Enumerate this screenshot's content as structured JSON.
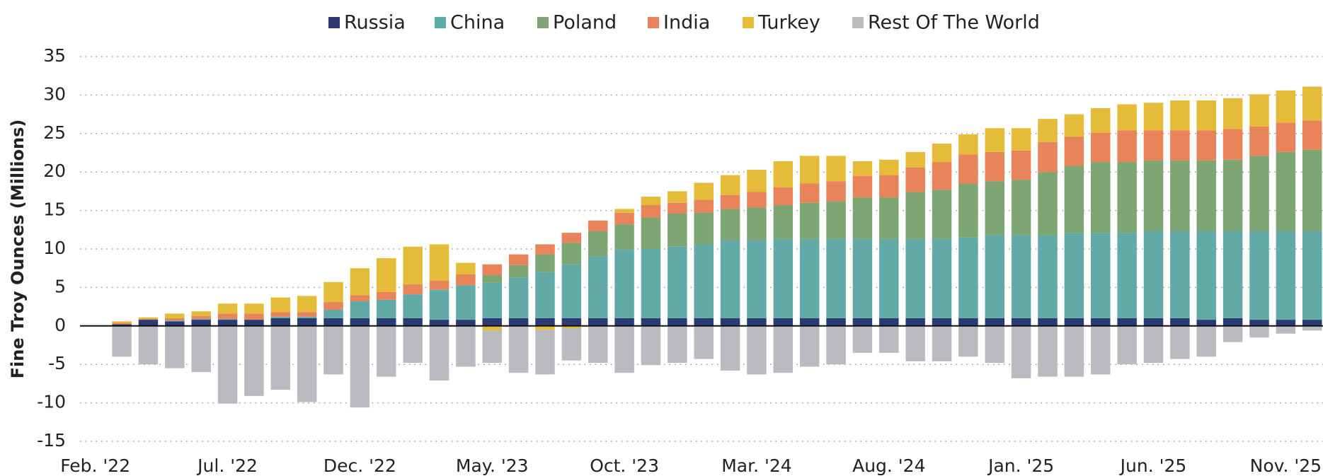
{
  "chart_data": {
    "type": "bar",
    "stacked": true,
    "y_label": "Fine Troy Ounces (Millions)",
    "categories": [
      "Feb. '22",
      null,
      null,
      null,
      null,
      "Jul. '22",
      null,
      null,
      null,
      null,
      "Dec. '22",
      null,
      null,
      null,
      null,
      "May. '23",
      null,
      null,
      null,
      null,
      "Oct. '23",
      null,
      null,
      null,
      null,
      "Mar. '24",
      null,
      null,
      null,
      null,
      "Aug. '24",
      null,
      null,
      null,
      null,
      "Jan. '25",
      null,
      null,
      null,
      null,
      "Jun. '25",
      null,
      null,
      null,
      null,
      "Nov. '25",
      null
    ],
    "series": [
      {
        "name": "Russia",
        "color": "#2b3a73",
        "values": [
          null,
          0.2,
          0.8,
          0.6,
          0.8,
          0.8,
          0.8,
          1.0,
          1.0,
          1.0,
          1.0,
          1.0,
          1.0,
          0.8,
          0.8,
          1.0,
          1.0,
          1.0,
          1.0,
          1.0,
          1.0,
          1.0,
          1.0,
          1.0,
          1.0,
          1.0,
          1.0,
          1.0,
          1.0,
          1.0,
          1.0,
          1.0,
          1.0,
          1.0,
          1.0,
          1.0,
          1.0,
          1.0,
          1.0,
          1.0,
          1.0,
          1.0,
          0.8,
          1.0,
          0.8,
          0.8,
          0.8
        ]
      },
      {
        "name": "China",
        "color": "#62aaa8",
        "values": [
          null,
          0,
          0,
          0.1,
          0.1,
          0.1,
          0,
          0.2,
          0.2,
          1.1,
          2.2,
          2.4,
          3.1,
          3.9,
          4.5,
          4.6,
          5.3,
          6.0,
          7.0,
          8.0,
          8.9,
          9.0,
          9.3,
          9.6,
          10.1,
          10.1,
          10.3,
          10.3,
          10.3,
          10.3,
          10.3,
          10.3,
          10.3,
          10.5,
          10.8,
          10.8,
          10.8,
          11.1,
          11.1,
          11.1,
          11.3,
          11.3,
          11.5,
          11.3,
          11.5,
          11.5,
          11.5
        ]
      },
      {
        "name": "Poland",
        "color": "#7ea574",
        "values": [
          null,
          0,
          0,
          0,
          0,
          0,
          0,
          0,
          0,
          0,
          0,
          0,
          0,
          0,
          0,
          1.0,
          1.6,
          2.3,
          2.8,
          3.3,
          3.3,
          4.1,
          4.3,
          4.1,
          4.1,
          4.3,
          4.4,
          4.7,
          4.9,
          5.4,
          5.4,
          6.1,
          6.4,
          7.0,
          7.0,
          7.2,
          8.2,
          8.7,
          9.2,
          9.2,
          9.2,
          9.2,
          9.2,
          9.3,
          9.8,
          10.3,
          10.6
        ]
      },
      {
        "name": "India",
        "color": "#e8835a",
        "values": [
          null,
          0.2,
          0.1,
          0.3,
          0.4,
          0.7,
          0.8,
          0.6,
          0.6,
          1.0,
          0.8,
          1.0,
          1.3,
          1.2,
          1.4,
          1.4,
          1.4,
          1.3,
          1.3,
          1.4,
          1.5,
          1.6,
          1.4,
          1.7,
          1.8,
          2.0,
          2.3,
          2.5,
          2.6,
          2.8,
          2.9,
          3.2,
          3.6,
          3.8,
          3.8,
          3.8,
          3.9,
          3.8,
          3.8,
          4.1,
          3.9,
          3.9,
          3.9,
          4.0,
          3.8,
          3.8,
          3.8
        ]
      },
      {
        "name": "Turkey",
        "color": "#e4bc3a",
        "values": [
          null,
          0.2,
          0.2,
          0.6,
          0.6,
          1.3,
          1.3,
          1.9,
          2.1,
          2.6,
          3.5,
          4.4,
          4.9,
          4.7,
          1.5,
          -0.6,
          0,
          -0.5,
          -0.3,
          0,
          0.5,
          1.1,
          1.5,
          2.2,
          2.6,
          2.9,
          3.4,
          3.6,
          3.3,
          1.9,
          2.0,
          2.0,
          2.4,
          2.6,
          3.1,
          2.9,
          3.0,
          2.9,
          3.2,
          3.4,
          3.6,
          3.9,
          3.9,
          4.0,
          4.2,
          4.2,
          4.4
        ]
      },
      {
        "name": "Rest Of The World",
        "color": "#b9bbc0",
        "values": [
          null,
          -4.0,
          -5.0,
          -5.5,
          -6.0,
          -10.1,
          -9.1,
          -8.3,
          -9.9,
          -6.3,
          -10.6,
          -6.6,
          -4.8,
          -7.1,
          -5.3,
          -4.2,
          -6.1,
          -5.8,
          -4.2,
          -4.8,
          -6.1,
          -5.1,
          -4.8,
          -4.3,
          -5.8,
          -6.3,
          -6.1,
          -5.3,
          -5.0,
          -3.5,
          -3.5,
          -4.6,
          -4.6,
          -4.0,
          -4.8,
          -6.8,
          -6.6,
          -6.6,
          -6.3,
          -5.0,
          -4.8,
          -4.3,
          -4.0,
          -2.1,
          -1.5,
          -1.0,
          -0.6
        ]
      }
    ],
    "ylim": [
      -15,
      35
    ],
    "yticks": [
      -15,
      -10,
      -5,
      0,
      5,
      10,
      15,
      20,
      25,
      30,
      35
    ],
    "grid": true,
    "legend": "top"
  }
}
